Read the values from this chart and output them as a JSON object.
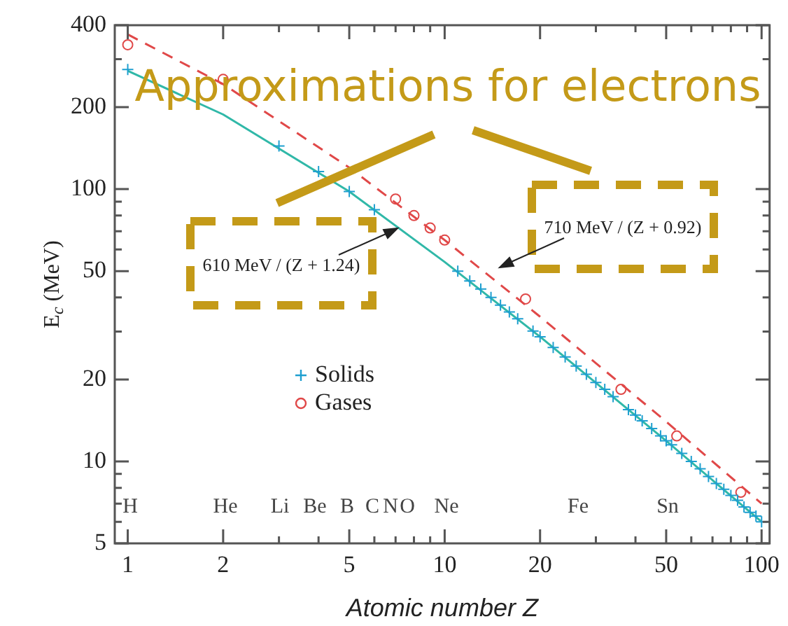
{
  "chart_data": {
    "type": "scatter",
    "xlabel": "Atomic number Z",
    "ylabel": "E$_{c}$ (MeV)",
    "log": "xy",
    "xlim": [
      0.91,
      106
    ],
    "ylim": [
      5,
      400
    ],
    "xticks": [
      1,
      2,
      {
        "value": 3,
        "label": null
      },
      {
        "value": 4,
        "label": null
      },
      5,
      {
        "value": 6,
        "label": null
      },
      {
        "value": 7,
        "label": null
      },
      {
        "value": 8,
        "label": null
      },
      {
        "value": 9,
        "label": null
      },
      10,
      20,
      {
        "value": 30,
        "label": null
      },
      {
        "value": 40,
        "label": null
      },
      50,
      {
        "value": 60,
        "label": null
      },
      {
        "value": 70,
        "label": null
      },
      {
        "value": 80,
        "label": null
      },
      {
        "value": 90,
        "label": null
      },
      100
    ],
    "yticks": [
      5,
      {
        "value": 6,
        "label": null
      },
      {
        "value": 7,
        "label": null
      },
      {
        "value": 8,
        "label": null
      },
      {
        "value": 9,
        "label": null
      },
      10,
      20,
      {
        "value": 30,
        "label": null
      },
      {
        "value": 40,
        "label": null
      },
      50,
      {
        "value": 60,
        "label": null
      },
      {
        "value": 70,
        "label": null
      },
      {
        "value": 80,
        "label": null
      },
      {
        "value": 90,
        "label": null
      },
      100,
      200,
      {
        "value": 300,
        "label": null
      },
      400
    ],
    "grid": false,
    "legend": "bottom left",
    "series": [
      {
        "name": "Solids",
        "marker": "cross",
        "color": "#1e9fd0",
        "x": [
          1,
          3,
          4,
          5,
          6,
          11,
          12,
          13,
          14,
          15,
          16,
          17,
          19,
          20,
          22,
          24,
          26,
          28,
          30,
          32,
          34,
          38,
          40,
          42,
          45,
          48,
          50,
          52,
          56,
          60,
          64,
          68,
          72,
          76,
          80,
          84,
          88,
          92,
          96,
          100
        ],
        "values": [
          275,
          144,
          116,
          98,
          84,
          50,
          46,
          43,
          40,
          37.5,
          35.4,
          33.4,
          30.1,
          28.7,
          26.2,
          24.2,
          22.4,
          20.9,
          19.5,
          18.4,
          17.3,
          15.5,
          14.8,
          14.1,
          13.2,
          12.4,
          11.9,
          11.5,
          10.7,
          10.0,
          9.4,
          8.8,
          8.3,
          7.9,
          7.5,
          7.2,
          6.8,
          6.5,
          6.3,
          6.0
        ]
      },
      {
        "name": "Gases",
        "marker": "circle",
        "color": "#e04848",
        "x": [
          1,
          2,
          7,
          8,
          9,
          10,
          18,
          36,
          54,
          86
        ],
        "values": [
          339,
          253,
          92,
          80,
          72,
          65,
          39.5,
          18.4,
          12.4,
          7.7
        ]
      },
      {
        "type": "line",
        "marker": "none",
        "line_style": "solid",
        "color": "#30b8a8",
        "x": [
          1,
          2,
          5,
          10,
          20,
          50,
          100
        ],
        "values": [
          272,
          188,
          98,
          54,
          28.7,
          11.9,
          6.0
        ]
      },
      {
        "type": "line",
        "marker": "none",
        "line_style": "dashed",
        "color": "#e04848",
        "x": [
          1,
          2,
          5,
          10,
          20,
          50,
          100
        ],
        "values": [
          370,
          243,
          120,
          65,
          34,
          14,
          7.0
        ]
      }
    ],
    "annotations": [
      "Approximations for electrons",
      "610 MeV / (Z + 1.24)",
      "710 MeV / (Z + 0.92)",
      "H",
      "He",
      "Li",
      "Be",
      "B",
      "C",
      "N",
      "O",
      "Ne",
      "Fe",
      "Sn"
    ]
  }
}
